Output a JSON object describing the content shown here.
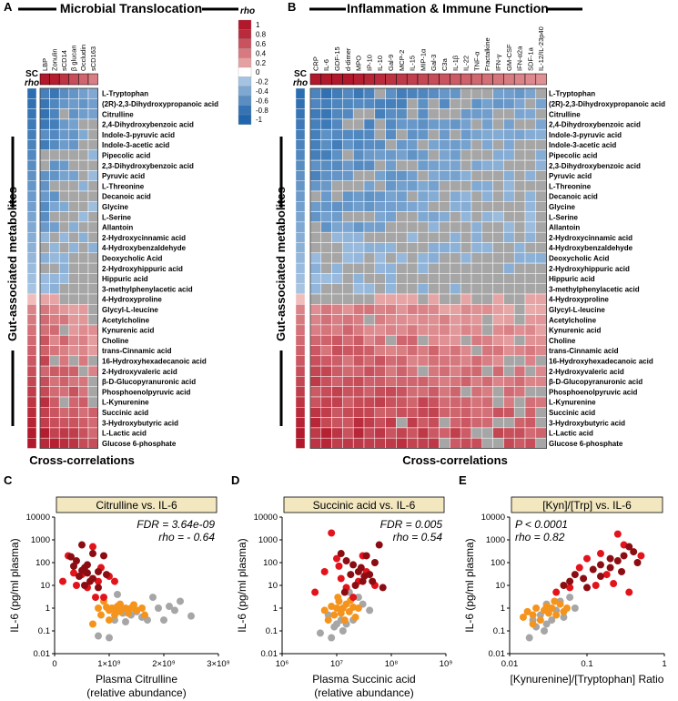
{
  "panel_labels": {
    "A": "A",
    "B": "B",
    "C": "C",
    "D": "D",
    "E": "E"
  },
  "heatmap_A": {
    "title": "Microbial Translocation",
    "left_label": "Gut-associated metabolites",
    "bottom_label": "Cross-correlations",
    "sc_label": "SC",
    "rho_label": "rho",
    "columns": [
      "LBP",
      "Zonulin",
      "sCD14",
      "β glucan",
      "Occludin",
      "sCD163"
    ]
  },
  "heatmap_B": {
    "title": "Inflammation & Immune Function",
    "left_label": "Gut-associated metabolites",
    "bottom_label": "Cross-correlations",
    "sc_label": "SC",
    "rho_label": "rho",
    "columns": [
      "CRP",
      "IL-6",
      "GDF-15",
      "d-dimer",
      "MPO",
      "IP-10",
      "IL-10",
      "Gal-9",
      "MCP-2",
      "IL-15",
      "MIP-1α",
      "Gal-3",
      "C3a",
      "IL-1β",
      "IL-22",
      "TNF-α",
      "Fractalkine",
      "IFN-γ",
      "GM-CSF",
      "IFN-α2a",
      "SDF-1a",
      "IL-12/IL-23p40"
    ]
  },
  "rows": [
    "L-Tryptophan",
    "(2R)-2,3-Dihydroxypropanoic acid",
    "Citrulline",
    "2,4-Dihydroxybenzoic acid",
    "Indole-3-pyruvic acid",
    "Indole-3-acetic acid",
    "Pipecolic acid",
    "2,3-Dihydroxybenzoic acid",
    "Pyruvic acid",
    "L-Threonine",
    "Decanoic acid",
    "Glycine",
    "L-Serine",
    "Allantoin",
    "2-Hydroxycinnamic acid",
    "4-Hydroxybenzaldehyde",
    "Deoxycholic Acid",
    "2-Hydroxyhippuric acid",
    "Hippuric acid",
    "3-methylphenylacetic acid",
    "4-Hydroxyproline",
    "Glycyl-L-leucine",
    "Acetylcholine",
    "Kynurenic acid",
    "Choline",
    "trans-Cinnamic acid",
    "16-Hydroxyhexadecanoic acid",
    "2-Hydroxyvaleric acid",
    "β-D-Glucopyranuronic acid",
    "Phosphoenolpyruvic acid",
    "L-Kynurenine",
    "Succinic acid",
    "3-Hydroxybutyric acid",
    "L-Lactic acid",
    "Glucose 6-phosphate"
  ],
  "colorbar": {
    "title": "rho",
    "ticks": [
      "1",
      "0.8",
      "0.6",
      "0.4",
      "0.2",
      "0",
      "-0.2",
      "-0.4",
      "-0.6",
      "-0.8",
      "-1"
    ],
    "colors": {
      "pos_strong": "#b2182b",
      "pos_light": "#f4c7c3",
      "neg_strong": "#2166ac",
      "neg_light": "#c9dcf0",
      "ns": "#a6a6a6"
    }
  },
  "chart_data": [
    {
      "type": "scatter",
      "panel": "C",
      "title": "Citrulline vs. IL-6",
      "stats": [
        "FDR = 3.64e-09",
        "rho = - 0.64"
      ],
      "xlabel": "Plasma Citrulline",
      "xlabel2": "(relative abundance)",
      "ylabel": "IL-6 (pg/ml plasma)",
      "xscale": "linear",
      "xlim": [
        0,
        3000000000
      ],
      "xticks": [
        "0",
        "1×10⁹",
        "2×10⁹",
        "3×10⁹"
      ],
      "yscale": "log",
      "ylim": [
        0.01,
        10000
      ],
      "yticks": [
        "0.01",
        "0.1",
        "1",
        "10",
        "100",
        "1000",
        "10000"
      ],
      "series": [
        {
          "name": "dark red",
          "color": "#8b0d12",
          "points": [
            [
              300000000.0,
              180
            ],
            [
              400000000.0,
              120
            ],
            [
              500000000.0,
              600
            ],
            [
              550000000.0,
              60
            ],
            [
              600000000.0,
              35
            ],
            [
              700000000.0,
              250
            ],
            [
              450000000.0,
              25
            ],
            [
              650000000.0,
              15
            ],
            [
              800000000.0,
              40
            ],
            [
              550000000.0,
              10
            ],
            [
              900000000.0,
              200
            ],
            [
              700000000.0,
              20
            ],
            [
              500000000.0,
              45
            ],
            [
              800000000.0,
              8
            ],
            [
              950000000.0,
              30
            ],
            [
              600000000.0,
              80
            ],
            [
              350000000.0,
              70
            ]
          ]
        },
        {
          "name": "red",
          "color": "#e3131b",
          "points": [
            [
              150000000.0,
              15
            ],
            [
              250000000.0,
              200
            ],
            [
              350000000.0,
              35
            ],
            [
              400000000.0,
              10
            ],
            [
              500000000.0,
              30
            ],
            [
              600000000.0,
              8
            ],
            [
              700000000.0,
              500
            ],
            [
              800000000.0,
              15
            ],
            [
              900000000.0,
              3
            ],
            [
              1000000000.0,
              25
            ],
            [
              1100000000.0,
              15
            ],
            [
              850000000.0,
              60
            ],
            [
              750000000.0,
              3
            ]
          ]
        },
        {
          "name": "orange",
          "color": "#f5941d",
          "points": [
            [
              700000000.0,
              0.2
            ],
            [
              800000000.0,
              1
            ],
            [
              900000000.0,
              2
            ],
            [
              1000000000.0,
              0.8
            ],
            [
              1050000000.0,
              1
            ],
            [
              1100000000.0,
              0.5
            ],
            [
              1150000000.0,
              1.2
            ],
            [
              1200000000.0,
              0.7
            ],
            [
              1300000000.0,
              1
            ],
            [
              1350000000.0,
              0.6
            ],
            [
              1400000000.0,
              1
            ],
            [
              1500000000.0,
              0.8
            ],
            [
              1600000000.0,
              1
            ],
            [
              1650000000.0,
              0.5
            ],
            [
              1200000000.0,
              1.5
            ],
            [
              1100000000.0,
              0.9
            ],
            [
              1000000000.0,
              0.3
            ],
            [
              950000000.0,
              1.1
            ],
            [
              850000000.0,
              0.5
            ],
            [
              1450000000.0,
              1.4
            ]
          ]
        },
        {
          "name": "gray",
          "color": "#a6a6a6",
          "points": [
            [
              800000000.0,
              0.06
            ],
            [
              1000000000.0,
              0.05
            ],
            [
              1100000000.0,
              0.3
            ],
            [
              1200000000.0,
              1.1
            ],
            [
              1300000000.0,
              0.25
            ],
            [
              1500000000.0,
              0.7
            ],
            [
              1700000000.0,
              0.3
            ],
            [
              1900000000.0,
              1
            ],
            [
              2000000000.0,
              0.3
            ],
            [
              2100000000.0,
              1.2
            ],
            [
              2200000000.0,
              0.8
            ],
            [
              2500000000.0,
              0.45
            ],
            [
              1800000000.0,
              3
            ],
            [
              1600000000.0,
              0.4
            ],
            [
              1400000000.0,
              0.5
            ],
            [
              1250000000.0,
              0.6
            ],
            [
              2300000000.0,
              2
            ],
            [
              1150000000.0,
              4
            ]
          ]
        }
      ]
    },
    {
      "type": "scatter",
      "panel": "D",
      "title": "Succinic acid vs. IL-6",
      "stats": [
        "FDR = 0.005",
        "rho = 0.54"
      ],
      "xlabel": "Plasma Succinic acid",
      "xlabel2": "(relative abundance)",
      "ylabel": "IL-6 (pg/ml plasma)",
      "xscale": "log",
      "xlim": [
        1000000,
        1000000000
      ],
      "xticks": [
        "10⁶",
        "10⁷",
        "10⁸",
        "10⁹"
      ],
      "yscale": "log",
      "ylim": [
        0.01,
        10000
      ],
      "yticks": [
        "0.01",
        "0.1",
        "1",
        "10",
        "100",
        "1000",
        "10000"
      ],
      "series": [
        {
          "name": "dark red",
          "color": "#8b0d12",
          "points": [
            [
              12000000.0,
              250
            ],
            [
              15000000.0,
              120
            ],
            [
              20000000.0,
              80
            ],
            [
              25000000.0,
              40
            ],
            [
              30000000.0,
              15
            ],
            [
              40000000.0,
              30
            ],
            [
              50000000.0,
              100
            ],
            [
              60000000.0,
              600
            ],
            [
              35000000.0,
              200
            ],
            [
              22000000.0,
              10
            ],
            [
              18000000.0,
              30
            ],
            [
              28000000.0,
              60
            ],
            [
              45000000.0,
              15
            ],
            [
              70000000.0,
              8
            ],
            [
              14000000.0,
              5
            ],
            [
              32000000.0,
              25
            ]
          ]
        },
        {
          "name": "red",
          "color": "#e3131b",
          "points": [
            [
              4000000.0,
              5
            ],
            [
              6000000.0,
              40
            ],
            [
              8000000.0,
              2000
            ],
            [
              10000000.0,
              150
            ],
            [
              12000000.0,
              20
            ],
            [
              15000000.0,
              8
            ],
            [
              20000000.0,
              3
            ],
            [
              25000000.0,
              15
            ],
            [
              30000000.0,
              200
            ],
            [
              35000000.0,
              40
            ],
            [
              50000000.0,
              10
            ],
            [
              11000000.0,
              70
            ]
          ]
        },
        {
          "name": "orange",
          "color": "#f5941d",
          "points": [
            [
              6000000.0,
              0.8
            ],
            [
              8000000.0,
              1.2
            ],
            [
              9000000.0,
              0.5
            ],
            [
              10000000.0,
              1
            ],
            [
              11000000.0,
              2
            ],
            [
              12000000.0,
              0.6
            ],
            [
              13000000.0,
              1
            ],
            [
              15000000.0,
              1.5
            ],
            [
              17000000.0,
              0.7
            ],
            [
              20000000.0,
              1.1
            ],
            [
              22000000.0,
              0.4
            ],
            [
              25000000.0,
              1
            ],
            [
              14000000.0,
              0.3
            ],
            [
              10500000.0,
              3
            ],
            [
              18000000.0,
              2.2
            ],
            [
              7000000.0,
              0.3
            ]
          ]
        },
        {
          "name": "gray",
          "color": "#a6a6a6",
          "points": [
            [
              5000000.0,
              0.08
            ],
            [
              7000000.0,
              0.5
            ],
            [
              8000000.0,
              0.05
            ],
            [
              10000000.0,
              0.2
            ],
            [
              12000000.0,
              0.3
            ],
            [
              15000000.0,
              0.2
            ],
            [
              20000000.0,
              0.3
            ],
            [
              30000000.0,
              1.5
            ],
            [
              17000000.0,
              5
            ],
            [
              25000000.0,
              3
            ],
            [
              9000000.0,
              0.15
            ],
            [
              40000000.0,
              0.8
            ],
            [
              13000000.0,
              0.1
            ]
          ]
        }
      ]
    },
    {
      "type": "scatter",
      "panel": "E",
      "title": "[Kyn]/[Trp] vs. IL-6",
      "stats": [
        "P < 0.0001",
        "rho = 0.82"
      ],
      "xlabel": "[Kynurenine]/[Tryptophan] Ratio",
      "xlabel2": "",
      "ylabel": "IL-6 (pg/ml plasma)",
      "xscale": "log",
      "xlim": [
        0.01,
        1
      ],
      "xticks": [
        "0.01",
        "0.1",
        "1"
      ],
      "yscale": "log",
      "ylim": [
        0.01,
        10000
      ],
      "yticks": [
        "0.01",
        "0.1",
        "1",
        "10",
        "100",
        "1000",
        "10000"
      ],
      "series": [
        {
          "name": "dark red",
          "color": "#8b0d12",
          "points": [
            [
              0.05,
              10
            ],
            [
              0.07,
              30
            ],
            [
              0.09,
              20
            ],
            [
              0.12,
              50
            ],
            [
              0.15,
              80
            ],
            [
              0.2,
              150
            ],
            [
              0.25,
              120
            ],
            [
              0.3,
              200
            ],
            [
              0.35,
              500
            ],
            [
              0.4,
              300
            ],
            [
              0.2,
              60
            ],
            [
              0.28,
              40
            ],
            [
              0.15,
              25
            ],
            [
              0.45,
              100
            ],
            [
              0.06,
              15
            ],
            [
              0.1,
              8
            ]
          ]
        },
        {
          "name": "red",
          "color": "#e3131b",
          "points": [
            [
              0.04,
              5
            ],
            [
              0.06,
              8
            ],
            [
              0.08,
              60
            ],
            [
              0.1,
              150
            ],
            [
              0.15,
              250
            ],
            [
              0.25,
              1800
            ],
            [
              0.3,
              600
            ],
            [
              0.18,
              30
            ],
            [
              0.13,
              10
            ],
            [
              0.35,
              5
            ],
            [
              0.5,
              200
            ],
            [
              0.22,
              12
            ]
          ]
        },
        {
          "name": "orange",
          "color": "#f5941d",
          "points": [
            [
              0.015,
              0.4
            ],
            [
              0.017,
              0.7
            ],
            [
              0.02,
              0.5
            ],
            [
              0.022,
              1
            ],
            [
              0.025,
              0.3
            ],
            [
              0.028,
              0.8
            ],
            [
              0.03,
              1.2
            ],
            [
              0.032,
              0.6
            ],
            [
              0.035,
              1
            ],
            [
              0.04,
              0.5
            ],
            [
              0.045,
              1.5
            ],
            [
              0.05,
              0.7
            ],
            [
              0.02,
              0.2
            ],
            [
              0.038,
              2
            ],
            [
              0.055,
              1
            ]
          ]
        },
        {
          "name": "gray",
          "color": "#a6a6a6",
          "points": [
            [
              0.018,
              0.05
            ],
            [
              0.02,
              0.3
            ],
            [
              0.025,
              0.5
            ],
            [
              0.028,
              0.1
            ],
            [
              0.03,
              0.2
            ],
            [
              0.035,
              0.3
            ],
            [
              0.04,
              0.8
            ],
            [
              0.05,
              0.4
            ],
            [
              0.045,
              2
            ],
            [
              0.06,
              3
            ],
            [
              0.03,
              1.5
            ],
            [
              0.022,
              0.15
            ],
            [
              0.07,
              1
            ]
          ]
        }
      ]
    }
  ]
}
